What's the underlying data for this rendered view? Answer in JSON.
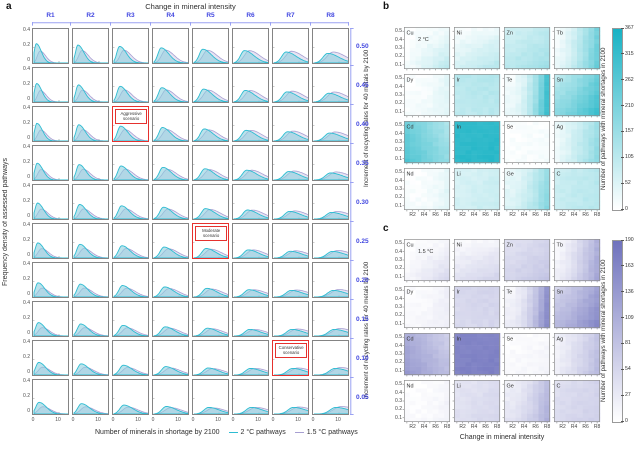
{
  "panels": {
    "a": {
      "label": "a",
      "title": "Change in mineral intensity",
      "col_labels": [
        "R1",
        "R2",
        "R3",
        "R4",
        "R5",
        "R6",
        "R7",
        "R8"
      ],
      "row_labels": [
        "0.50",
        "0.45",
        "0.40",
        "0.35",
        "0.30",
        "0.25",
        "0.20",
        "0.15",
        "0.10",
        "0.05"
      ],
      "ytick_labels": [
        "0.4",
        "0.2",
        "0"
      ],
      "xtick_labels": [
        "0",
        "10"
      ],
      "ylabel": "Frequency density of assessed pathways",
      "xlabel": "Number of minerals in shortage by 2100",
      "legend": [
        {
          "label": "2 °C pathways",
          "color": "#2ebcd2",
          "fill": "#8ecfdd"
        },
        {
          "label": "1.5 °C pathways",
          "color": "#a79fd2",
          "fill": "#cfcae6"
        }
      ],
      "annotations": [
        {
          "row": 2,
          "col": 2,
          "text_lines": [
            "Aggressive",
            "scenario"
          ]
        },
        {
          "row": 5,
          "col": 4,
          "text_lines": [
            "Moderate",
            "scenario"
          ]
        },
        {
          "row": 8,
          "col": 6,
          "text_lines": [
            "Conservative",
            "scenario"
          ]
        }
      ],
      "accent_text_color": "#4348e0",
      "accent_line_color": "#9ba2f2",
      "annotation_color": "#e5312e"
    },
    "b": {
      "label": "b",
      "temp_label": "2 °C",
      "ylabel": "Increment of recycling rates for 40 metals by 2100",
      "ytick_labels": [
        "0.5",
        "0.4",
        "0.3",
        "0.2",
        "0.1"
      ],
      "xtick_labels": [
        "R2",
        "R4",
        "R6",
        "R8"
      ],
      "colorbar_label": "Number of pathways with mineral shortages in 2100",
      "colorbar_ticks": [
        "367",
        "315",
        "262",
        "210",
        "157",
        "105",
        "52",
        "0"
      ],
      "max_color": "#17b2c4"
    },
    "c": {
      "label": "c",
      "temp_label": "1.5 °C",
      "xlabel": "Change in mineral intensity",
      "ylabel": "Increment of recycling rates for 40 metals by 2100",
      "ytick_labels": [
        "0.5",
        "0.4",
        "0.3",
        "0.2",
        "0.1"
      ],
      "xtick_labels": [
        "R2",
        "R4",
        "R6",
        "R8"
      ],
      "colorbar_label": "Number of pathways with mineral shortages in 2100",
      "colorbar_ticks": [
        "190",
        "163",
        "136",
        "109",
        "81",
        "54",
        "27",
        "0"
      ],
      "max_color": "#6f72bd"
    }
  },
  "chart_data": [
    {
      "type": "area",
      "panel": "a",
      "title": "Change in mineral intensity",
      "description": "10x8 grid of frequency-density curves; rows = increment of recycling rates (0.50 to 0.05), columns = mineral-intensity scenarios R1 to R8; two overlaid density series per cell",
      "series": [
        "2 °C pathways",
        "1.5 °C pathways"
      ],
      "x_range": [
        0,
        14
      ],
      "y_range": [
        0,
        0.4
      ],
      "density_model": {
        "teal": {
          "mode_base": 0.9,
          "mode_col": 0.65,
          "mode_colrow": 0.035,
          "mode_row": 0.12,
          "height_base": 0.25,
          "height_col": -0.018,
          "height_row": -0.011,
          "height_min": 0.085,
          "sigl_base": 0.8,
          "sigl_col": 0.15,
          "sigl_row": 0.05,
          "sigr_base": 2.0,
          "sigr_col": 0.35,
          "sigr_row": 0.1
        },
        "purple": {
          "mode_offset": 1.5,
          "mode_col": 0.1,
          "hscale_base": 0.62,
          "hscale_col": 0.075,
          "sigl_mult": 1.3,
          "sigr_mult": 1.1
        }
      }
    },
    {
      "type": "heatmap",
      "panel": "b",
      "temperature": "2 °C",
      "value_range": [
        0,
        367
      ],
      "grid": {
        "cols": 8,
        "rows": 10
      },
      "x_axis": "Change in mineral intensity (R1-R8)",
      "y_axis": "Increment of recycling rates (0.1-0.5)",
      "elements": [
        {
          "name": "Cu",
          "base": 0.0,
          "gx": 0.05,
          "px": 1,
          "gy": 0.04,
          "cross": 0.18
        },
        {
          "name": "Ni",
          "base": 0.02,
          "gx": 0.06,
          "px": 1,
          "gy": 0.16,
          "cross": 0.08
        },
        {
          "name": "Zn",
          "base": 0.18,
          "gx": 0.1,
          "px": 1,
          "gy": 0.12,
          "cross": 0
        },
        {
          "name": "Tb",
          "base": 0.03,
          "gx": 0.55,
          "px": 1.4,
          "gy": 0.06,
          "cross": 0
        },
        {
          "name": "Dy",
          "base": 0.01,
          "gx": 0.1,
          "px": 2,
          "gy": 0.03,
          "cross": 0
        },
        {
          "name": "Ir",
          "base": 0.3,
          "gx": 0.03,
          "px": 1,
          "gy": -0.03,
          "cross": 0
        },
        {
          "name": "Te",
          "base": 0.04,
          "gx": 0.75,
          "px": 2.2,
          "gy": 0.06,
          "cross": 0
        },
        {
          "name": "Sn",
          "base": 0.28,
          "gx": 0.34,
          "px": 1.2,
          "gy": 0.22,
          "cross": 0
        },
        {
          "name": "Cd",
          "base": 0.62,
          "gx": -0.27,
          "px": 1,
          "gy": 0.13,
          "cross": 0
        },
        {
          "name": "In",
          "base": 0.88,
          "gx": 0.02,
          "px": 1,
          "gy": 0.02,
          "cross": 0
        },
        {
          "name": "Se",
          "base": 0.01,
          "gx": 0.02,
          "px": 1,
          "gy": 0.01,
          "cross": 0
        },
        {
          "name": "Ag",
          "base": 0.08,
          "gx": 0.32,
          "px": 1.3,
          "gy": 0.0,
          "cross": 0.08
        },
        {
          "name": "Nd",
          "base": 0.01,
          "gx": 0.1,
          "px": 2.5,
          "gy": 0.02,
          "cross": 0
        },
        {
          "name": "Li",
          "base": 0.16,
          "gx": 0.05,
          "px": 1,
          "gy": 0.03,
          "cross": 0
        },
        {
          "name": "Ge",
          "base": 0.08,
          "gx": 0.35,
          "px": 1.8,
          "gy": 0.08,
          "cross": 0
        },
        {
          "name": "C",
          "base": 0.22,
          "gx": 0.08,
          "px": 1,
          "gy": 0.02,
          "cross": 0
        }
      ]
    },
    {
      "type": "heatmap",
      "panel": "c",
      "temperature": "1.5 °C",
      "value_range": [
        0,
        190
      ],
      "grid": {
        "cols": 8,
        "rows": 10
      },
      "x_axis": "Change in mineral intensity (R1-R8)",
      "y_axis": "Increment of recycling rates (0.1-0.5)",
      "elements": [
        {
          "name": "Cu",
          "base": 0.0,
          "gx": 0.05,
          "px": 1,
          "gy": 0.06,
          "cross": 0.15
        },
        {
          "name": "Ni",
          "base": 0.03,
          "gx": 0.05,
          "px": 1,
          "gy": 0.18,
          "cross": 0.06
        },
        {
          "name": "Zn",
          "base": 0.2,
          "gx": 0.1,
          "px": 1,
          "gy": 0.1,
          "cross": 0
        },
        {
          "name": "Tb",
          "base": 0.04,
          "gx": 0.5,
          "px": 1.4,
          "gy": 0.08,
          "cross": 0
        },
        {
          "name": "Dy",
          "base": 0.02,
          "gx": 0.08,
          "px": 2,
          "gy": 0.03,
          "cross": 0
        },
        {
          "name": "Ir",
          "base": 0.28,
          "gx": 0.03,
          "px": 1,
          "gy": -0.02,
          "cross": 0
        },
        {
          "name": "Te",
          "base": 0.06,
          "gx": 0.7,
          "px": 2,
          "gy": 0.08,
          "cross": 0
        },
        {
          "name": "Sn",
          "base": 0.3,
          "gx": 0.34,
          "px": 1.2,
          "gy": 0.2,
          "cross": 0
        },
        {
          "name": "Cd",
          "base": 0.58,
          "gx": -0.24,
          "px": 1,
          "gy": 0.14,
          "cross": 0
        },
        {
          "name": "In",
          "base": 0.86,
          "gx": 0.02,
          "px": 1,
          "gy": 0.02,
          "cross": 0
        },
        {
          "name": "Se",
          "base": 0.02,
          "gx": 0.03,
          "px": 2,
          "gy": 0.03,
          "cross": 0
        },
        {
          "name": "Ag",
          "base": 0.1,
          "gx": 0.3,
          "px": 1.3,
          "gy": 0.02,
          "cross": 0.06
        },
        {
          "name": "Nd",
          "base": 0.01,
          "gx": 0.06,
          "px": 2.5,
          "gy": 0.02,
          "cross": 0
        },
        {
          "name": "Li",
          "base": 0.18,
          "gx": 0.06,
          "px": 1,
          "gy": 0.05,
          "cross": 0
        },
        {
          "name": "Ge",
          "base": 0.1,
          "gx": 0.35,
          "px": 1.8,
          "gy": 0.1,
          "cross": 0
        },
        {
          "name": "C",
          "base": 0.22,
          "gx": 0.08,
          "px": 1,
          "gy": 0.04,
          "cross": 0
        }
      ]
    }
  ]
}
